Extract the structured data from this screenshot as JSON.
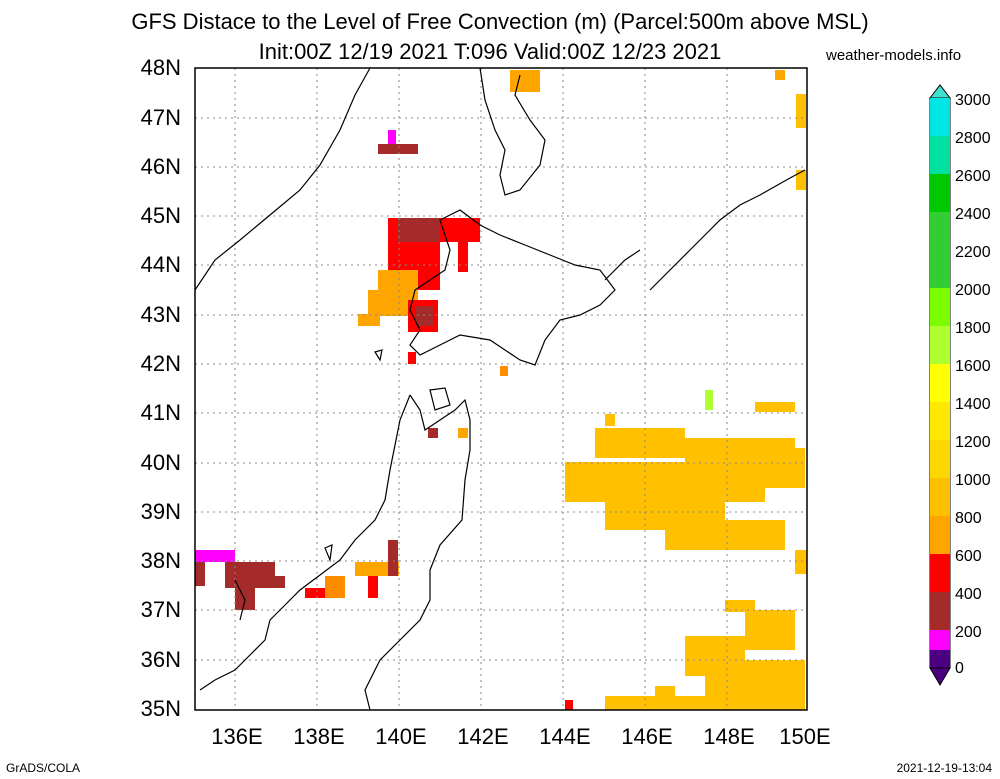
{
  "title": {
    "line1": "GFS Distace to the Level of Free Convection (m) (Parcel:500m above MSL)",
    "line2": "Init:00Z 12/19 2021 T:096 Valid:00Z 12/23 2021",
    "site": "weather-models.info"
  },
  "axes": {
    "lat_labels": [
      "48N",
      "47N",
      "46N",
      "45N",
      "44N",
      "43N",
      "42N",
      "41N",
      "40N",
      "39N",
      "38N",
      "37N",
      "36N",
      "35N"
    ],
    "lon_labels": [
      "136E",
      "138E",
      "140E",
      "142E",
      "144E",
      "146E",
      "148E",
      "150E"
    ]
  },
  "colorbar": {
    "labels": [
      "3000",
      "2800",
      "2600",
      "2400",
      "2200",
      "2000",
      "1800",
      "1600",
      "1400",
      "1200",
      "1000",
      "800",
      "600",
      "400",
      "200",
      "0"
    ],
    "colors": [
      "#4b0082",
      "#ff00ff",
      "#a52a2a",
      "#ff0000",
      "#ff8c00",
      "#ffa500",
      "#ffc000",
      "#ffd700",
      "#ffe800",
      "#ffff00",
      "#adff2f",
      "#7cfc00",
      "#32cd32",
      "#00c800",
      "#00e0a0",
      "#00e6e6",
      "#40e0d0"
    ]
  },
  "footer": {
    "left": "GrADS/COLA",
    "right": "2021-12-19-13:04"
  }
}
